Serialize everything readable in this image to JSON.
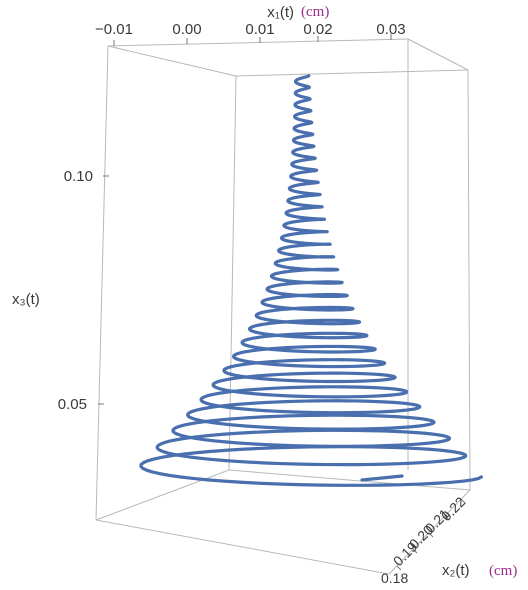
{
  "chart_data": {
    "type": "line",
    "subtype": "3d-parametric-curve",
    "title": "",
    "x1_axis": {
      "label": "x₁(t)",
      "unit": "(cm)",
      "ticks": [
        "−0.01",
        "0.00",
        "0.01",
        "0.02",
        "0.03"
      ],
      "range": [
        -0.012,
        0.03
      ]
    },
    "x2_axis": {
      "label": "x₂(t)",
      "unit": "(cm)",
      "ticks": [
        "0.18",
        "0.19",
        "0.20",
        "0.21",
        "0.22"
      ],
      "range": [
        0.18,
        0.222
      ]
    },
    "x3_axis": {
      "label": "x₃(t)",
      "ticks": [
        "0.05",
        "0.10"
      ],
      "range": [
        0.03,
        0.123
      ]
    },
    "series": [
      {
        "color": "#4a6fae",
        "description_values": {
          "x1_center": 0.018,
          "x2_center": 0.2,
          "x3_start": 0.034,
          "x3_end": 0.122
        }
      }
    ],
    "grid": false,
    "colors": {
      "curve": "#4a6fae",
      "unit_label": "#9b2e8f",
      "box": "#b8b8b8"
    }
  }
}
